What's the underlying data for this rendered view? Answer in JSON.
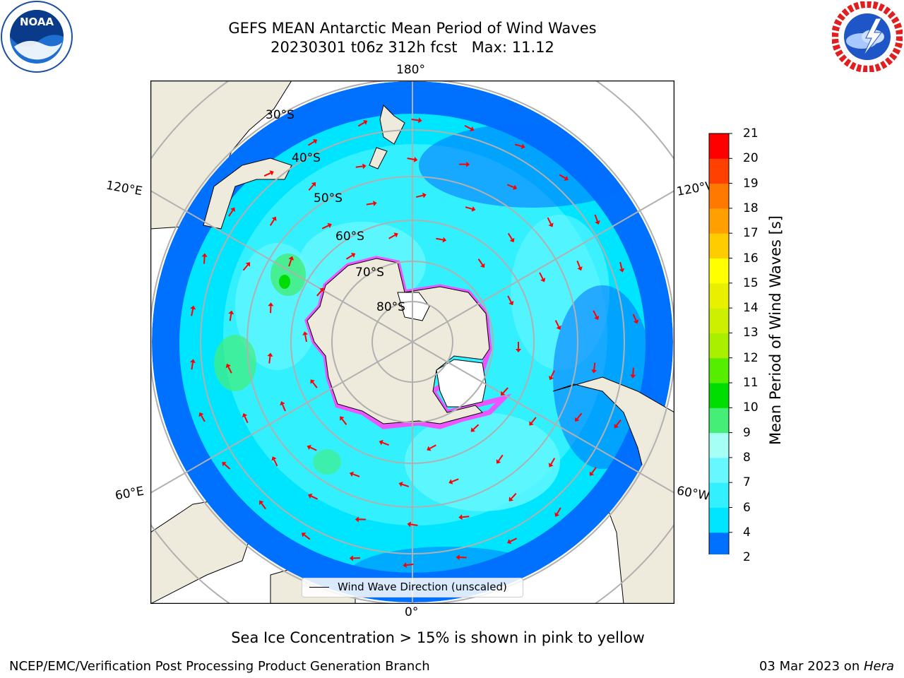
{
  "header": {
    "title_line1": "GEFS MEAN Antarctic Mean Period of Wind Waves",
    "title_line2": "20230301 t06z 312h fcst   Max: 11.12"
  },
  "logos": {
    "left": "noaa-logo",
    "right": "national-weather-service-logo",
    "left_text": "NOAA",
    "right_text": "NATIONAL WEATHER SERVICE"
  },
  "map": {
    "projection": "south-polar-stereographic",
    "lon_labels": {
      "top": "180°",
      "bottom": "0°",
      "left_upper": "120°E",
      "left_lower": "60°E",
      "right_upper": "120°W",
      "right_lower": "60°W"
    },
    "lat_labels": [
      "30°S",
      "40°S",
      "50°S",
      "60°S",
      "70°S",
      "80°S"
    ],
    "legend": "Wind Wave Direction (unscaled)",
    "arrow_color": "#ff0000",
    "land_color": "#eeebdc",
    "ice_color": "#ff44ff"
  },
  "colorbar": {
    "label": "Mean Period of Wind Waves [s]",
    "ticks": [
      "2",
      "4",
      "6",
      "7",
      "8",
      "9",
      "10",
      "11",
      "12",
      "13",
      "14",
      "15",
      "16",
      "17",
      "18",
      "19",
      "20",
      "21"
    ],
    "colors": [
      "#0000e0",
      "#0070ff",
      "#00e5ff",
      "#33f0ff",
      "#66f7ff",
      "#a6fff5",
      "#44ee77",
      "#00dd00",
      "#55ee00",
      "#aaee00",
      "#ccf000",
      "#e8f000",
      "#ffff00",
      "#ffcc00",
      "#ffa000",
      "#ff7800",
      "#ff4000",
      "#ff0000"
    ]
  },
  "notes": {
    "ice": "Sea Ice Concentration > 15% is shown in pink to yellow",
    "footer_left": "NCEP/EMC/Verification Post Processing Product Generation Branch",
    "footer_date": "03 Mar 2023 on ",
    "footer_machine": "Hera"
  }
}
